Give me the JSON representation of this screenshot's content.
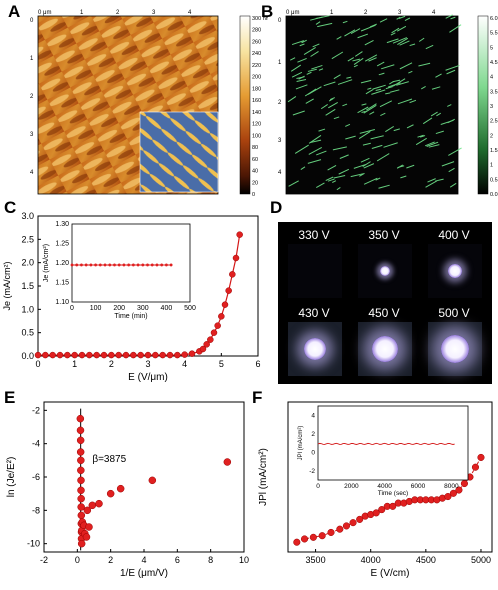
{
  "panels": {
    "A": {
      "letter": "A",
      "top_axis": [
        "0 μm",
        "1",
        "2",
        "3",
        "4"
      ],
      "left_axis": [
        "0",
        "1",
        "2",
        "3",
        "4"
      ],
      "colorbar": [
        "300 nm",
        "280",
        "260",
        "240",
        "220",
        "200",
        "180",
        "160",
        "140",
        "120",
        "100",
        "80",
        "60",
        "40",
        "20",
        "0"
      ]
    },
    "B": {
      "letter": "B",
      "top_axis": [
        "0 μm",
        "1",
        "2",
        "3",
        "4"
      ],
      "left_axis": [
        "0",
        "1",
        "2",
        "3",
        "4"
      ],
      "colorbar": [
        "6.0 μA",
        "5.5",
        "5",
        "4.5",
        "4",
        "3.5",
        "3",
        "2.5",
        "2",
        "1.5",
        "1",
        "0.5",
        "0.0"
      ]
    },
    "C": {
      "letter": "C"
    },
    "D": {
      "letter": "D",
      "voltages": [
        "330 V",
        "350 V",
        "400 V",
        "430 V",
        "450 V",
        "500 V"
      ]
    },
    "E": {
      "letter": "E",
      "annotation": "β=3875"
    },
    "F": {
      "letter": "F"
    }
  },
  "chart_data": [
    {
      "id": "C",
      "type": "scatter",
      "xlabel": "E (V/μm)",
      "ylabel": "Je (mA/cm²)",
      "xlim": [
        0,
        6
      ],
      "ylim": [
        0,
        3.0
      ],
      "xticks": [
        "0",
        "1",
        "2",
        "3",
        "4",
        "5",
        "6"
      ],
      "yticks": [
        "0.0",
        "0.5",
        "1.0",
        "1.5",
        "2.0",
        "2.5",
        "3.0"
      ],
      "x": [
        0,
        0.2,
        0.4,
        0.6,
        0.8,
        1.0,
        1.2,
        1.4,
        1.6,
        1.8,
        2.0,
        2.2,
        2.4,
        2.6,
        2.8,
        3.0,
        3.2,
        3.4,
        3.6,
        3.8,
        4.0,
        4.2,
        4.4,
        4.5,
        4.6,
        4.7,
        4.8,
        4.9,
        5.0,
        5.1,
        5.2,
        5.3,
        5.4,
        5.5
      ],
      "y": [
        0.02,
        0.02,
        0.02,
        0.02,
        0.02,
        0.02,
        0.02,
        0.02,
        0.02,
        0.02,
        0.02,
        0.02,
        0.02,
        0.02,
        0.02,
        0.02,
        0.02,
        0.02,
        0.02,
        0.02,
        0.03,
        0.05,
        0.1,
        0.15,
        0.25,
        0.35,
        0.5,
        0.65,
        0.85,
        1.1,
        1.4,
        1.75,
        2.1,
        2.6
      ],
      "inset": {
        "xlabel": "Time (min)",
        "ylabel": "Je (mA/cm²)",
        "xlim": [
          0,
          500
        ],
        "ylim": [
          1.1,
          1.3
        ],
        "xticks": [
          "0",
          "100",
          "200",
          "300",
          "400",
          "500"
        ],
        "yticks": [
          "1.10",
          "1.15",
          "1.20",
          "1.25",
          "1.30"
        ],
        "x": [
          0,
          20,
          40,
          60,
          80,
          100,
          120,
          140,
          160,
          180,
          200,
          220,
          240,
          260,
          280,
          300,
          320,
          340,
          360,
          380,
          400,
          420
        ],
        "y": [
          1.195,
          1.195,
          1.195,
          1.195,
          1.195,
          1.195,
          1.195,
          1.195,
          1.195,
          1.195,
          1.195,
          1.195,
          1.195,
          1.195,
          1.195,
          1.195,
          1.195,
          1.195,
          1.195,
          1.195,
          1.195,
          1.195
        ]
      }
    },
    {
      "id": "E",
      "type": "scatter",
      "xlabel": "1/E (μm/V)",
      "ylabel": "ln (Je/E²)",
      "xlim": [
        -2,
        10
      ],
      "ylim": [
        -10.5,
        -1.5
      ],
      "xticks": [
        "-2",
        "0",
        "2",
        "4",
        "6",
        "8",
        "10"
      ],
      "yticks": [
        "-2",
        "-4",
        "-6",
        "-8",
        "-10"
      ],
      "x": [
        0.18,
        0.19,
        0.2,
        0.2,
        0.21,
        0.21,
        0.22,
        0.22,
        0.23,
        0.23,
        0.24,
        0.24,
        0.25,
        0.25,
        0.26,
        0.27,
        0.3,
        0.4,
        0.6,
        0.9,
        1.3,
        2.0,
        2.6,
        4.5,
        9.0,
        0.45,
        0.7,
        0.55
      ],
      "y": [
        -2.5,
        -3.2,
        -3.8,
        -4.5,
        -5.0,
        -5.6,
        -6.2,
        -6.8,
        -7.3,
        -7.8,
        -8.3,
        -8.8,
        -9.3,
        -9.7,
        -10.0,
        -9.2,
        -8.7,
        -8.9,
        -8.0,
        -7.7,
        -7.6,
        -7.0,
        -6.7,
        -6.2,
        -5.1,
        -9.4,
        -9.0,
        -9.6
      ]
    },
    {
      "id": "F",
      "type": "scatter",
      "xlabel": "E (V/cm)",
      "ylabel": "JPl (mA/cm²)",
      "xlim": [
        3250,
        5100
      ],
      "xticks": [
        "3500",
        "4000",
        "4500",
        "5000"
      ],
      "x": [
        3330,
        3400,
        3480,
        3560,
        3640,
        3720,
        3780,
        3840,
        3900,
        3950,
        4000,
        4050,
        4100,
        4150,
        4200,
        4250,
        4300,
        4350,
        4400,
        4450,
        4500,
        4550,
        4600,
        4650,
        4700,
        4750,
        4800,
        4850,
        4900,
        4950,
        5000
      ],
      "y": [
        0.89,
        0.9,
        0.905,
        0.91,
        0.92,
        0.93,
        0.94,
        0.95,
        0.96,
        0.97,
        0.975,
        0.98,
        0.99,
        1.0,
        1.0,
        1.01,
        1.01,
        1.015,
        1.02,
        1.02,
        1.02,
        1.02,
        1.02,
        1.025,
        1.03,
        1.04,
        1.05,
        1.07,
        1.09,
        1.12,
        1.15
      ],
      "inset": {
        "xlabel": "Time (sec)",
        "ylabel": "JPl (mA/cm²)",
        "xlim": [
          0,
          9000
        ],
        "ylim": [
          -3,
          5
        ],
        "xticks": [
          "0",
          "2000",
          "4000",
          "6000",
          "8000"
        ],
        "yticks": [
          "4",
          "2",
          "0",
          "-2"
        ],
        "value": 0.9
      }
    }
  ]
}
